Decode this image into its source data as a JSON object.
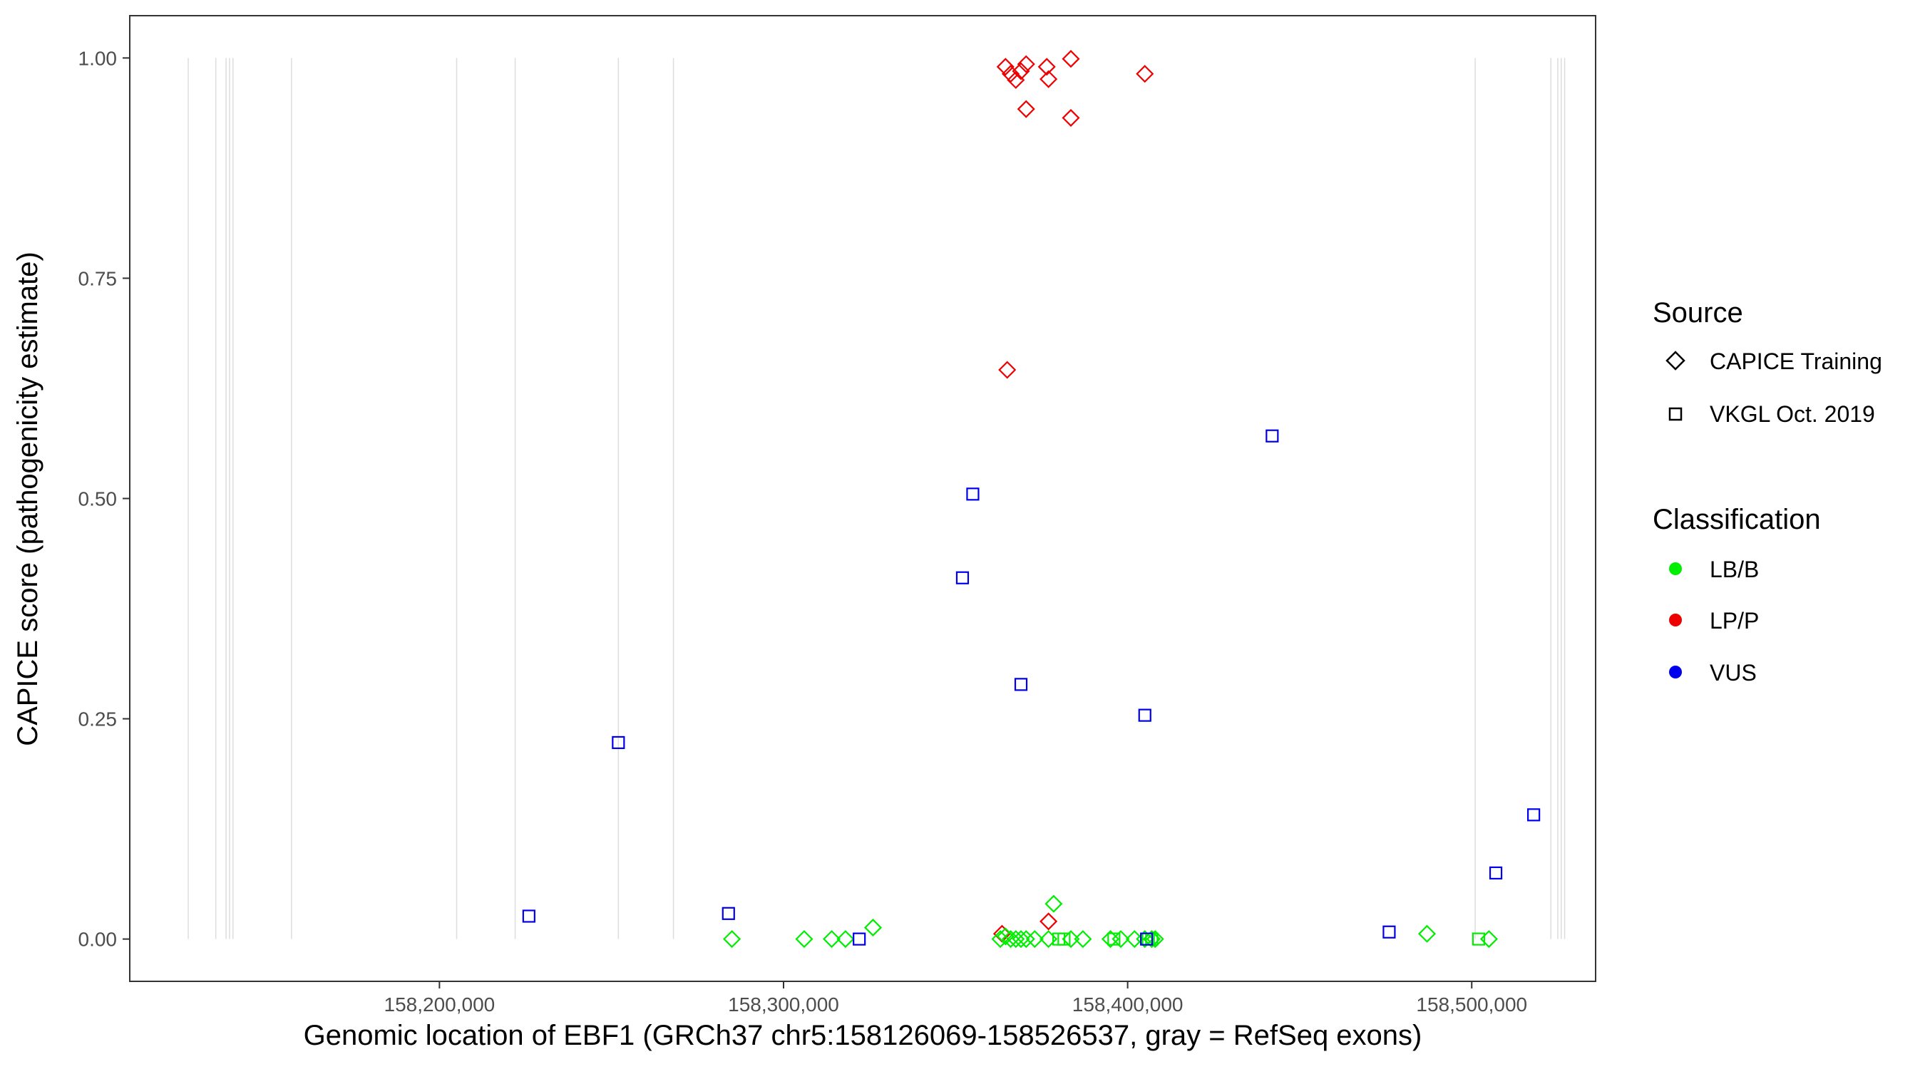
{
  "chart_data": {
    "type": "scatter",
    "title": "",
    "xlabel": "Genomic location of EBF1 (GRCh37 chr5:158126069-158526537, gray = RefSeq exons)",
    "ylabel": "CAPICE score (pathogenicity estimate)",
    "xlim": [
      158110000,
      158536000
    ],
    "ylim": [
      -0.048,
      1.048
    ],
    "x_ticks": [
      158200000,
      158300000,
      158400000,
      158500000
    ],
    "x_tick_labels": [
      "158,200,000",
      "158,300,000",
      "158,400,000",
      "158,500,000"
    ],
    "y_ticks": [
      0,
      0.25,
      0.5,
      0.75,
      1.0
    ],
    "y_tick_labels": [
      "0.00",
      "0.25",
      "0.50",
      "0.75",
      "1.00"
    ],
    "grid": false,
    "exons": [
      158127000,
      158135000,
      158138000,
      158139000,
      158140000,
      158157000,
      158205000,
      158222000,
      158252000,
      158268000,
      158501000,
      158523000,
      158525000,
      158526000,
      158527000
    ],
    "colors": {
      "LB/B": "#00ee00",
      "LP/P": "#ee0000",
      "VUS": "#0000ee",
      "exon": "#dddddd"
    },
    "legend": {
      "placement": "right",
      "source_title": "Source",
      "source_items": [
        {
          "label": "CAPICE Training",
          "shape": "diamond"
        },
        {
          "label": "VKGL Oct. 2019",
          "shape": "square"
        }
      ],
      "class_title": "Classification",
      "class_items": [
        {
          "label": "LB/B",
          "color_key": "LB/B"
        },
        {
          "label": "LP/P",
          "color_key": "LP/P"
        },
        {
          "label": "VUS",
          "color_key": "VUS"
        }
      ]
    },
    "series": [
      {
        "source": "CAPICE Training",
        "class": "LP/P",
        "points": [
          [
            158364500,
            0.99
          ],
          [
            158366000,
            0.982
          ],
          [
            158367500,
            0.975
          ],
          [
            158369000,
            0.985
          ],
          [
            158370500,
            0.993
          ],
          [
            158376500,
            0.99
          ],
          [
            158377000,
            0.976
          ],
          [
            158383500,
            0.999
          ],
          [
            158370500,
            0.942
          ],
          [
            158383500,
            0.932
          ],
          [
            158405000,
            0.982
          ],
          [
            158365000,
            0.646
          ],
          [
            158363500,
            0.006
          ],
          [
            158377000,
            0.02
          ]
        ]
      },
      {
        "source": "CAPICE Training",
        "class": "LB/B",
        "points": [
          [
            158285000,
            0.0
          ],
          [
            158306000,
            0.0
          ],
          [
            158314000,
            0.0
          ],
          [
            158318000,
            0.0
          ],
          [
            158326000,
            0.013
          ],
          [
            158363000,
            0.0
          ],
          [
            158364500,
            0.003
          ],
          [
            158366000,
            0.0
          ],
          [
            158367500,
            0.0
          ],
          [
            158369000,
            0.0
          ],
          [
            158370500,
            0.0
          ],
          [
            158373000,
            0.0
          ],
          [
            158377000,
            0.0
          ],
          [
            158378500,
            0.04
          ],
          [
            158383500,
            0.0
          ],
          [
            158387000,
            0.0
          ],
          [
            158395000,
            0.0
          ],
          [
            158398000,
            0.0
          ],
          [
            158402000,
            0.0
          ],
          [
            158405000,
            0.0
          ],
          [
            158407000,
            0.0
          ],
          [
            158408000,
            0.0
          ],
          [
            158487000,
            0.006
          ],
          [
            158505000,
            0.0
          ]
        ]
      },
      {
        "source": "VKGL Oct. 2019",
        "class": "LB/B",
        "points": [
          [
            158380000,
            0.0
          ],
          [
            158381500,
            0.0
          ],
          [
            158396000,
            0.0
          ],
          [
            158406000,
            0.0
          ],
          [
            158407000,
            0.0
          ],
          [
            158502000,
            0.0
          ]
        ]
      },
      {
        "source": "VKGL Oct. 2019",
        "class": "VUS",
        "points": [
          [
            158226000,
            0.026
          ],
          [
            158252000,
            0.223
          ],
          [
            158284000,
            0.029
          ],
          [
            158322000,
            0.0
          ],
          [
            158352000,
            0.41
          ],
          [
            158355000,
            0.505
          ],
          [
            158369000,
            0.289
          ],
          [
            158405000,
            0.254
          ],
          [
            158405500,
            0.0
          ],
          [
            158442000,
            0.571
          ],
          [
            158476000,
            0.008
          ],
          [
            158507000,
            0.075
          ],
          [
            158518000,
            0.141
          ]
        ]
      }
    ]
  }
}
